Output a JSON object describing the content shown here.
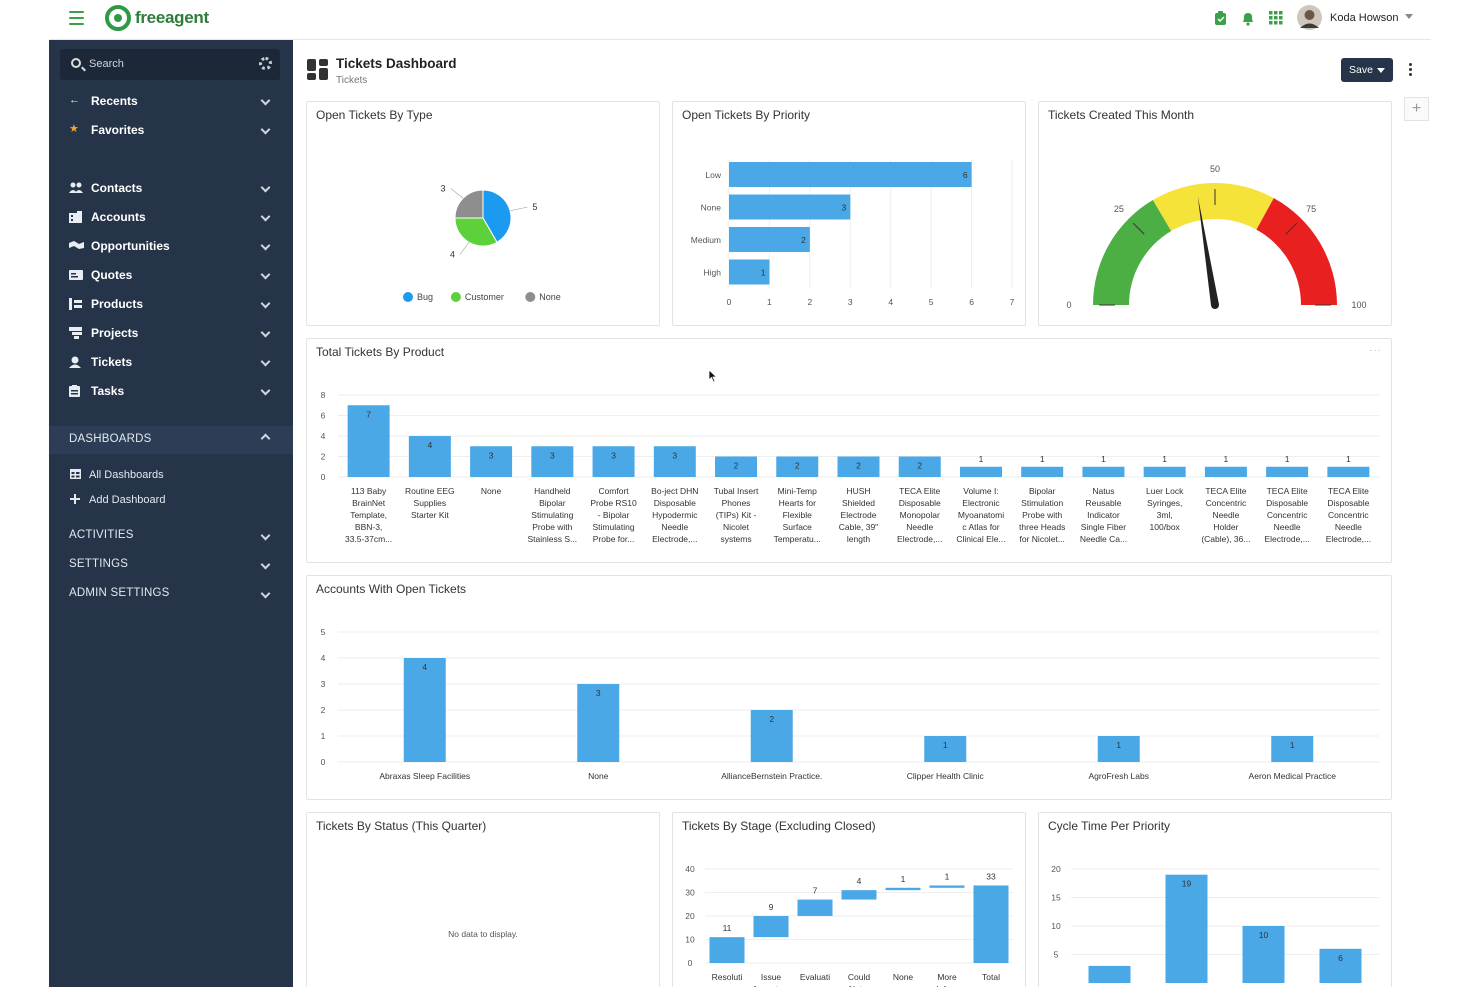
{
  "app": {
    "logo_text": "freeagent",
    "user_name": "Koda Howson"
  },
  "search": {
    "placeholder": "Search"
  },
  "nav": {
    "top": [
      {
        "label": "Recents",
        "icon": "arrow-left-icon"
      },
      {
        "label": "Favorites",
        "icon": "star-icon"
      }
    ],
    "main": [
      {
        "label": "Contacts",
        "icon": "contacts-icon"
      },
      {
        "label": "Accounts",
        "icon": "accounts-icon"
      },
      {
        "label": "Opportunities",
        "icon": "opportunities-icon"
      },
      {
        "label": "Quotes",
        "icon": "quotes-icon"
      },
      {
        "label": "Products",
        "icon": "products-icon"
      },
      {
        "label": "Projects",
        "icon": "projects-icon"
      },
      {
        "label": "Tickets",
        "icon": "tickets-icon"
      },
      {
        "label": "Tasks",
        "icon": "tasks-icon"
      }
    ],
    "dashboards_label": "DASHBOARDS",
    "dashboard_items": [
      {
        "label": "All Dashboards",
        "icon": "grid-icon"
      },
      {
        "label": "Add Dashboard",
        "icon": "plus-icon"
      }
    ],
    "sections": [
      "ACTIVITIES",
      "SETTINGS",
      "ADMIN SETTINGS"
    ]
  },
  "page": {
    "title": "Tickets Dashboard",
    "subtitle": "Tickets",
    "save_label": "Save",
    "add_widget": "+"
  },
  "panels": {
    "by_type": "Open Tickets By Type",
    "by_priority": "Open Tickets By Priority",
    "created": "Tickets Created This Month",
    "by_product": "Total Tickets By Product",
    "accounts": "Accounts With Open Tickets",
    "status": "Tickets By Status (This Quarter)",
    "status_empty": "No data to display.",
    "stage": "Tickets By Stage (Excluding Closed)",
    "cycle": "Cycle Time Per Priority"
  },
  "colors": {
    "bar": "#4aa8e6",
    "sidebar": "#253449",
    "green": "#4caf43",
    "yellow": "#f5e33a",
    "red": "#e8201f",
    "gray": "#8e8e8e"
  },
  "chart_data": [
    {
      "id": "by_type",
      "type": "pie",
      "labels": [
        "Bug",
        "Customer",
        "None"
      ],
      "values": [
        5,
        4,
        3
      ],
      "colors": [
        "#1a9bf0",
        "#5cd13a",
        "#8e8e8e"
      ],
      "legend": "bottom"
    },
    {
      "id": "by_priority",
      "type": "bar",
      "orientation": "horizontal",
      "categories": [
        "Low",
        "None",
        "Medium",
        "High"
      ],
      "values": [
        6,
        3,
        2,
        1
      ],
      "xticks": [
        "0",
        "1",
        "2",
        "3",
        "4",
        "5",
        "6",
        "7"
      ],
      "xlim": [
        0,
        7
      ]
    },
    {
      "id": "created",
      "type": "gauge",
      "min": 0,
      "max": 100,
      "value": 45,
      "ticks": [
        "0",
        "25",
        "50",
        "75",
        "100"
      ],
      "bands": [
        {
          "from": 0,
          "to": 33,
          "color": "#4caf43"
        },
        {
          "from": 33,
          "to": 66,
          "color": "#f5e33a"
        },
        {
          "from": 66,
          "to": 100,
          "color": "#e8201f"
        }
      ]
    },
    {
      "id": "by_product",
      "type": "bar",
      "categories": [
        [
          "113 Baby",
          "BrainNet",
          "Template,",
          "BBN-3,",
          "33.5-37cm..."
        ],
        [
          "Routine EEG",
          "Supplies",
          "Starter Kit"
        ],
        [
          "None"
        ],
        [
          "Handheld",
          "Bipolar",
          "Stimulating",
          "Probe with",
          "Stainless S..."
        ],
        [
          "Comfort",
          "Probe RS10",
          "- Bipolar",
          "Stimulating",
          "Probe for..."
        ],
        [
          "Bo-ject DHN",
          "Disposable",
          "Hypodermic",
          "Needle",
          "Electrode,..."
        ],
        [
          "Tubal Insert",
          "Phones",
          "(TIPs) Kit -",
          "Nicolet",
          "systems"
        ],
        [
          "Mini-Temp",
          "Hearts for",
          "Flexible",
          "Surface",
          "Temperatu..."
        ],
        [
          "HUSH",
          "Shielded",
          "Electrode",
          "Cable, 39\"",
          "length"
        ],
        [
          "TECA Elite",
          "Disposable",
          "Monopolar",
          "Needle",
          "Electrode,..."
        ],
        [
          "Volume I:",
          "Electronic",
          "Myoanatomi",
          "c Atlas for",
          "Clinical Ele..."
        ],
        [
          "Bipolar",
          "Stimulation",
          "Probe with",
          "three Heads",
          "for Nicolet..."
        ],
        [
          "Natus",
          "Reusable",
          "Indicator",
          "Single Fiber",
          "Needle Ca..."
        ],
        [
          "Luer Lock",
          "Syringes,",
          "3ml,",
          "100/box"
        ],
        [
          "TECA Elite",
          "Concentric",
          "Needle",
          "Holder",
          "(Cable), 36..."
        ],
        [
          "TECA Elite",
          "Disposable",
          "Concentric",
          "Needle",
          "Electrode,..."
        ],
        [
          "TECA Elite",
          "Disposable",
          "Concentric",
          "Needle",
          "Electrode,..."
        ]
      ],
      "values": [
        7,
        4,
        3,
        3,
        3,
        3,
        2,
        2,
        2,
        2,
        1,
        1,
        1,
        1,
        1,
        1,
        1
      ],
      "yticks": [
        "0",
        "2",
        "4",
        "6",
        "8"
      ],
      "ylim": [
        0,
        8
      ]
    },
    {
      "id": "accounts",
      "type": "bar",
      "categories": [
        "Abraxas Sleep Facilities",
        "None",
        "AllianceBernstein Practice.",
        "Clipper Health Clinic",
        "AgroFresh Labs",
        "Aeron Medical Practice"
      ],
      "values": [
        4,
        3,
        2,
        1,
        1,
        1
      ],
      "yticks": [
        "0",
        "1",
        "2",
        "3",
        "4",
        "5"
      ],
      "ylim": [
        0,
        5
      ]
    },
    {
      "id": "stage",
      "type": "bar",
      "subtype": "waterfall",
      "categories": [
        [
          "Resoluti",
          "..."
        ],
        [
          "Issue",
          "Accepte..."
        ],
        [
          "Evaluati",
          "..."
        ],
        [
          "Could",
          "Not..."
        ],
        [
          "None"
        ],
        [
          "More",
          "Info..."
        ],
        [
          "Total"
        ]
      ],
      "values": [
        11,
        9,
        7,
        4,
        1,
        1,
        33
      ],
      "yticks": [
        "0",
        "10",
        "20",
        "30",
        "40"
      ],
      "ylim": [
        0,
        40
      ]
    },
    {
      "id": "cycle",
      "type": "bar",
      "values": [
        3,
        19,
        10,
        6
      ],
      "labels": [
        "",
        "19",
        "10",
        "6"
      ],
      "yticks": [
        "5",
        "10",
        "15",
        "20"
      ],
      "ylim": [
        0,
        20
      ]
    }
  ]
}
